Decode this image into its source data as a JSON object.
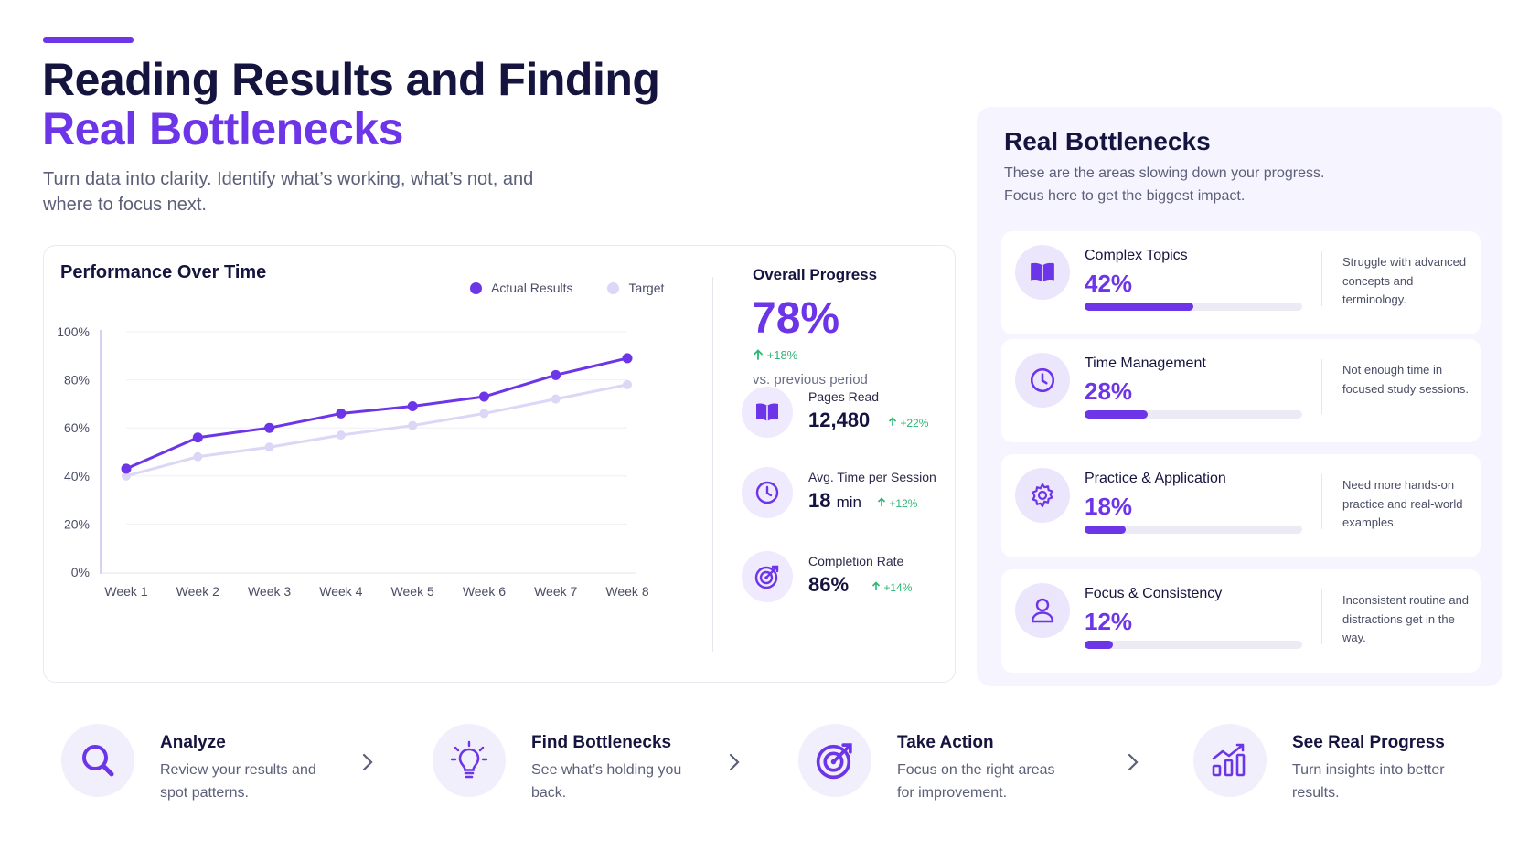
{
  "header": {
    "title_line1": "Reading Results and Finding",
    "title_line2": "Real Bottlenecks",
    "subtitle": "Turn data into clarity. Identify what’s working, what’s not, and where to focus next."
  },
  "colors": {
    "accent": "#6d35e8",
    "target": "#dcd6f7",
    "positive": "#2bb673"
  },
  "performance": {
    "title": "Performance Over Time",
    "legend": {
      "actual": "Actual Results",
      "target": "Target"
    }
  },
  "chart_data": {
    "type": "line",
    "title": "Performance Over Time",
    "categories": [
      "Week 1",
      "Week 2",
      "Week 3",
      "Week 4",
      "Week 5",
      "Week 6",
      "Week 7",
      "Week 8"
    ],
    "series": [
      {
        "name": "Actual Results",
        "values": [
          43,
          56,
          60,
          66,
          69,
          73,
          82,
          89
        ]
      },
      {
        "name": "Target",
        "values": [
          40,
          48,
          52,
          57,
          61,
          66,
          72,
          78
        ]
      }
    ],
    "yticks": [
      "0%",
      "20%",
      "40%",
      "60%",
      "80%",
      "100%"
    ],
    "ylim": [
      0,
      100
    ],
    "grid": true,
    "legend_position": "top-right"
  },
  "overall": {
    "label": "Overall Progress",
    "value": "78%",
    "delta": "+18%",
    "comparison": "vs. previous period"
  },
  "metrics": [
    {
      "label": "Pages Read",
      "value": "12,480",
      "unit": "",
      "delta": "+22%",
      "icon": "book-icon"
    },
    {
      "label": "Avg. Time per Session",
      "value": "18",
      "unit": "min",
      "delta": "+12%",
      "icon": "clock-icon"
    },
    {
      "label": "Completion Rate",
      "value": "86%",
      "unit": "",
      "delta": "+14%",
      "icon": "target-icon"
    }
  ],
  "bottlenecks": {
    "title": "Real Bottlenecks",
    "subtitle_line1": "These are the areas slowing down your progress.",
    "subtitle_line2": "Focus here to get the biggest impact.",
    "items": [
      {
        "name": "Complex Topics",
        "pct": "42%",
        "level": 0.5,
        "desc": "Struggle with advanced concepts and terminology.",
        "icon": "book-icon"
      },
      {
        "name": "Time Management",
        "pct": "28%",
        "level": 0.29,
        "desc": "Not enough time in focused study sessions.",
        "icon": "clock-icon"
      },
      {
        "name": "Practice & Application",
        "pct": "18%",
        "level": 0.19,
        "desc": "Need more hands-on practice and real-world examples.",
        "icon": "gear-icon"
      },
      {
        "name": "Focus & Consistency",
        "pct": "12%",
        "level": 0.13,
        "desc": "Inconsistent routine and distractions get in the way.",
        "icon": "person-icon"
      }
    ]
  },
  "steps": [
    {
      "title": "Analyze",
      "desc": "Review your results and spot patterns.",
      "icon": "magnifier-icon"
    },
    {
      "title": "Find Bottlenecks",
      "desc": "See what’s holding you back.",
      "icon": "lightbulb-icon"
    },
    {
      "title": "Take Action",
      "desc": "Focus on the right areas for improvement.",
      "icon": "target-icon"
    },
    {
      "title": "See Real Progress",
      "desc": "Turn insights into better results.",
      "icon": "growth-chart-icon"
    }
  ]
}
